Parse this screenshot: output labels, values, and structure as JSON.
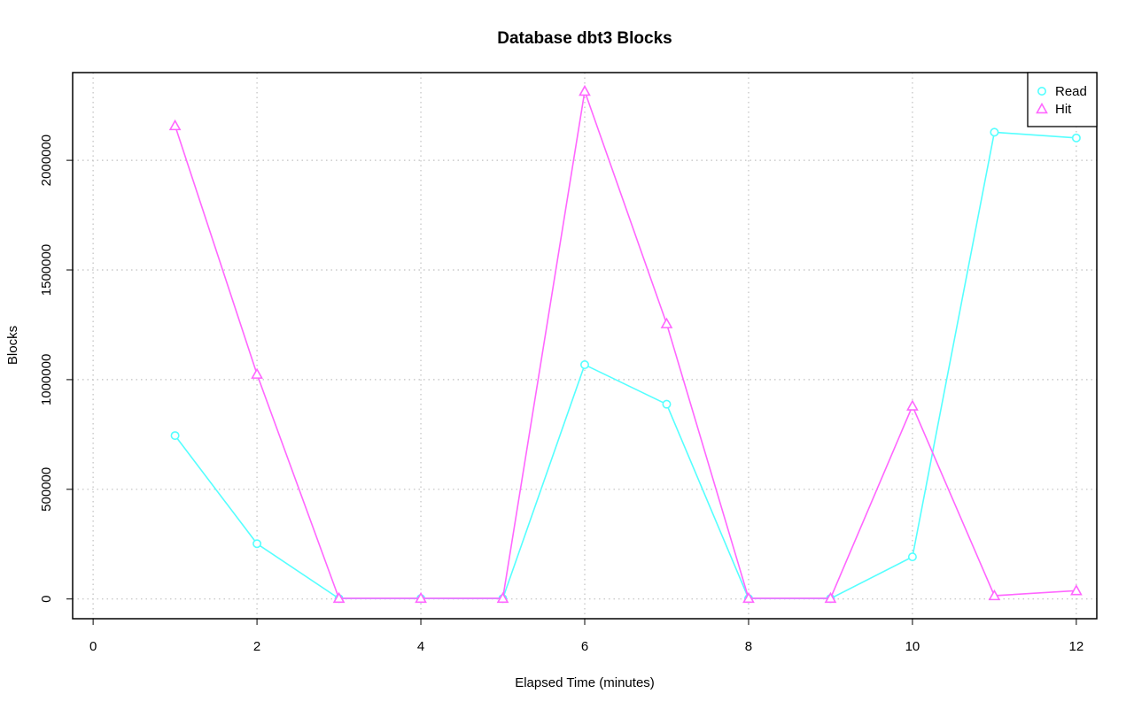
{
  "chart_data": {
    "type": "line",
    "title": "Database dbt3 Blocks",
    "xlabel": "Elapsed Time (minutes)",
    "ylabel": "Blocks",
    "xlim": [
      -0.25,
      12.25
    ],
    "ylim": [
      -90000,
      2400000
    ],
    "x_ticks": [
      0,
      2,
      4,
      6,
      8,
      10,
      12
    ],
    "x_tick_labels": [
      "0",
      "2",
      "4",
      "6",
      "8",
      "10",
      "12"
    ],
    "y_ticks": [
      0,
      500000,
      1000000,
      1500000,
      2000000
    ],
    "y_tick_labels": [
      "0",
      "500000",
      "1000000",
      "1500000",
      "2000000"
    ],
    "grid": true,
    "legend_position": "top-right",
    "x": [
      1,
      2,
      3,
      4,
      5,
      6,
      7,
      8,
      9,
      10,
      11,
      12
    ],
    "series": [
      {
        "name": "Read",
        "color": "#55ffff",
        "marker": "circle",
        "values": [
          745000,
          252000,
          2000,
          2000,
          2000,
          1068000,
          888000,
          2000,
          2000,
          192000,
          2128000,
          2102000
        ]
      },
      {
        "name": "Hit",
        "color": "#ff66ff",
        "marker": "triangle",
        "values": [
          2158000,
          1025000,
          3000,
          3000,
          3000,
          2315000,
          1255000,
          3000,
          3000,
          880000,
          15000,
          38000
        ]
      }
    ]
  }
}
